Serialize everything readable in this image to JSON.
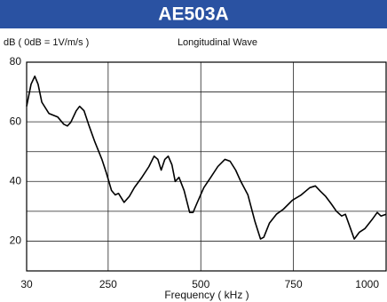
{
  "chart_data": {
    "type": "line",
    "title": "AE503A",
    "subtitle": "Longitudinal Wave",
    "y_label": "dB ( 0dB = 1V/m/s )",
    "x_label": "Frequency ( kHz )",
    "x": [
      30,
      42,
      52,
      61,
      71,
      90,
      114,
      130,
      140,
      149,
      164,
      173,
      185,
      197,
      214,
      233,
      245,
      259,
      269,
      278,
      293,
      307,
      321,
      341,
      360,
      374,
      384,
      393,
      403,
      412,
      422,
      431,
      441,
      455,
      470,
      479,
      489,
      508,
      527,
      546,
      565,
      579,
      594,
      608,
      627,
      646,
      661,
      670,
      685,
      704,
      723,
      747,
      771,
      794,
      809,
      823,
      837,
      852,
      866,
      880,
      890,
      904,
      914,
      928,
      943,
      962,
      976,
      986,
      1000
    ],
    "values": [
      65.2,
      72.6,
      75.3,
      72.6,
      66.6,
      62.8,
      61.6,
      59.2,
      58.6,
      59.8,
      63.7,
      65.2,
      63.7,
      59.2,
      53.3,
      47.4,
      42.9,
      37,
      35.5,
      36,
      33,
      35,
      38,
      41.4,
      45,
      48.5,
      47.4,
      43.8,
      47.4,
      48.5,
      45.6,
      40,
      41.4,
      37,
      29.6,
      29.6,
      32.5,
      37.9,
      41.4,
      45,
      47.4,
      46.8,
      43.8,
      40,
      35.5,
      26.6,
      20.7,
      21.3,
      26,
      29,
      30.7,
      33.7,
      35.5,
      37.9,
      38.5,
      36.7,
      35,
      32.5,
      30,
      28.4,
      29,
      24.2,
      20.7,
      23,
      24.2,
      27.2,
      29.6,
      28.4,
      29
    ],
    "color": "#000000",
    "xlim": [
      30,
      1000
    ],
    "xticks": [
      30,
      250,
      500,
      750,
      1000
    ],
    "ylim": [
      10,
      80
    ],
    "yticks": [
      20,
      40,
      60,
      80
    ],
    "yminor": [
      30,
      50,
      70
    ],
    "grid": true
  }
}
